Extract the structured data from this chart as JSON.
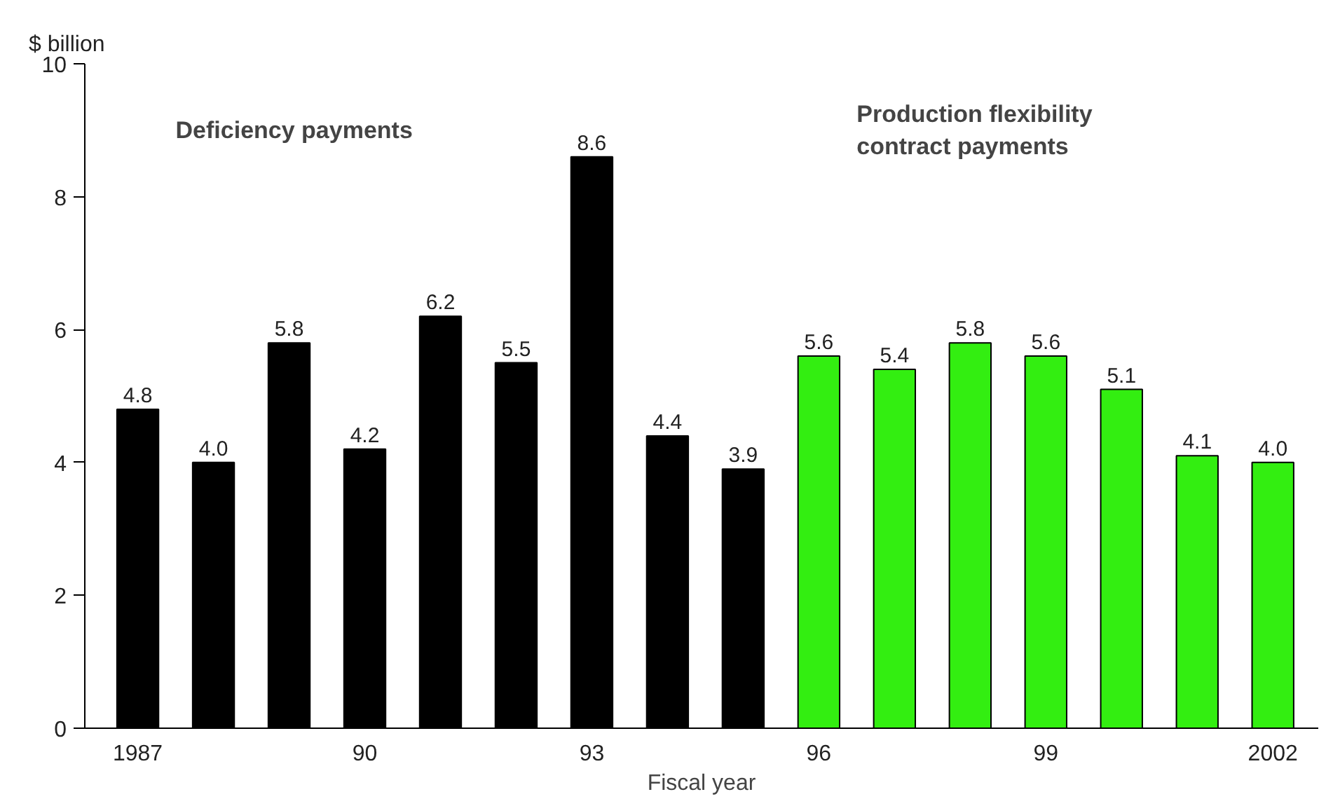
{
  "chart_data": {
    "type": "bar",
    "ylabel": "$ billion",
    "xlabel": "Fiscal year",
    "categories": [
      "1987",
      null,
      null,
      "90",
      null,
      null,
      "93",
      null,
      null,
      "96",
      null,
      null,
      "99",
      null,
      null,
      "2002"
    ],
    "series": [
      {
        "color": "#000000",
        "values": [
          4.8,
          4.0,
          5.8,
          4.2,
          6.2,
          5.5,
          8.6,
          4.4,
          3.9,
          null,
          null,
          null,
          null,
          null,
          null,
          null
        ],
        "value_labels": [
          "4.8",
          "4.0",
          "5.8",
          "4.2",
          "6.2",
          "5.5",
          "8.6",
          "4.4",
          "3.9",
          null,
          null,
          null,
          null,
          null,
          null,
          null
        ]
      },
      {
        "color": "#33ee11",
        "values": [
          null,
          null,
          null,
          null,
          null,
          null,
          null,
          null,
          null,
          5.6,
          5.4,
          5.8,
          5.6,
          5.1,
          4.1,
          4.0
        ],
        "value_labels": [
          null,
          null,
          null,
          null,
          null,
          null,
          null,
          null,
          null,
          "5.6",
          "5.4",
          "5.8",
          "5.6",
          "5.1",
          "4.1",
          "4.0"
        ]
      }
    ],
    "annotations": [
      "Deficiency payments",
      "Production flexibility\ncontract payments"
    ],
    "ylim": [
      0,
      10
    ],
    "yticks": [
      0,
      2,
      4,
      6,
      8,
      10
    ],
    "grid": false
  }
}
